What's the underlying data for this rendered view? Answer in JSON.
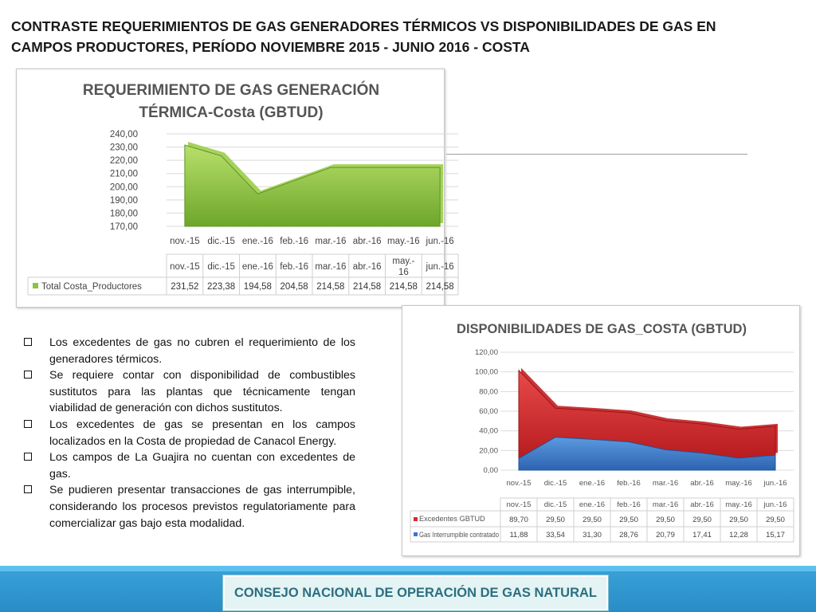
{
  "title_line1": "CONTRASTE REQUERIMIENTOS DE GAS GENERADORES TÉRMICOS VS DISPONIBILIDADES DE GAS EN",
  "title_line2_prefix": "CAMPOS PRODUCTORES, PERÍODO NOVIEMBRE 2015 - JUNIO 2016 - ",
  "title_line2_bold": "COSTA",
  "bullets": [
    "Los excedentes de gas no cubren el requerimiento de los generadores térmicos.",
    "Se requiere contar con disponibilidad de combustibles sustitutos para las plantas que técnicamente tengan viabilidad de generación con dichos sustitutos.",
    "Los excedentes de gas se presentan en los campos localizados en la Costa de propiedad de Canacol Energy.",
    "Los campos de La Guajira no cuentan con excedentes de gas.",
    "Se pudieren presentar transacciones de gas interrumpible, considerando los procesos previstos regulatoriamente para comercializar gas bajo esta modalidad."
  ],
  "footer": "CONSEJO NACIONAL DE OPERACIÓN DE GAS NATURAL",
  "chart_data": [
    {
      "type": "area",
      "title_line1": "REQUERIMIENTO DE GAS GENERACIÓN",
      "title_line2": "TÉRMICA-Costa (GBTUD)",
      "categories": [
        "nov.-15",
        "dic.-15",
        "ene.-16",
        "feb.-16",
        "mar.-16",
        "abr.-16",
        "may.-16",
        "jun.-16"
      ],
      "table_categories": [
        "nov.-15",
        "dic.-15",
        "ene.-16",
        "feb.-16",
        "mar.-16",
        "abr.-16",
        "may.-\n16",
        "jun.-16"
      ],
      "series": [
        {
          "name": "Total Costa_Productores",
          "values": [
            231.52,
            223.38,
            194.58,
            204.58,
            214.58,
            214.58,
            214.58,
            214.58
          ],
          "labels": [
            "231,52",
            "223,38",
            "194,58",
            "204,58",
            "214,58",
            "214,58",
            "214,58",
            "214,58"
          ],
          "color": "#8cc43f"
        }
      ],
      "y_ticks": [
        "240,00",
        "230,00",
        "220,00",
        "210,00",
        "200,00",
        "190,00",
        "180,00",
        "170,00"
      ],
      "ylim": [
        170,
        240
      ],
      "grid": true,
      "legend": "data-table"
    },
    {
      "type": "area",
      "title": "DISPONIBILIDADES DE GAS_COSTA (GBTUD)",
      "categories": [
        "nov.-15",
        "dic.-15",
        "ene.-16",
        "feb.-16",
        "mar.-16",
        "abr.-16",
        "may.-16",
        "jun.-16"
      ],
      "stacked": true,
      "series": [
        {
          "name": "Excedentes GBTUD",
          "values": [
            89.7,
            29.5,
            29.5,
            29.5,
            29.5,
            29.5,
            29.5,
            29.5
          ],
          "labels": [
            "89,70",
            "29,50",
            "29,50",
            "29,50",
            "29,50",
            "29,50",
            "29,50",
            "29,50"
          ],
          "color": "#d9292e"
        },
        {
          "name": "Gas Interrumpible contratado",
          "values": [
            11.88,
            33.54,
            31.3,
            28.76,
            20.79,
            17.41,
            12.28,
            15.17
          ],
          "labels": [
            "11,88",
            "33,54",
            "31,30",
            "28,76",
            "20,79",
            "17,41",
            "12,28",
            "15,17"
          ],
          "color": "#3c79c8"
        }
      ],
      "y_ticks": [
        "120,00",
        "100,00",
        "80,00",
        "60,00",
        "40,00",
        "20,00",
        "0,00"
      ],
      "ylim": [
        0,
        120
      ],
      "grid": true,
      "legend": "data-table"
    }
  ]
}
